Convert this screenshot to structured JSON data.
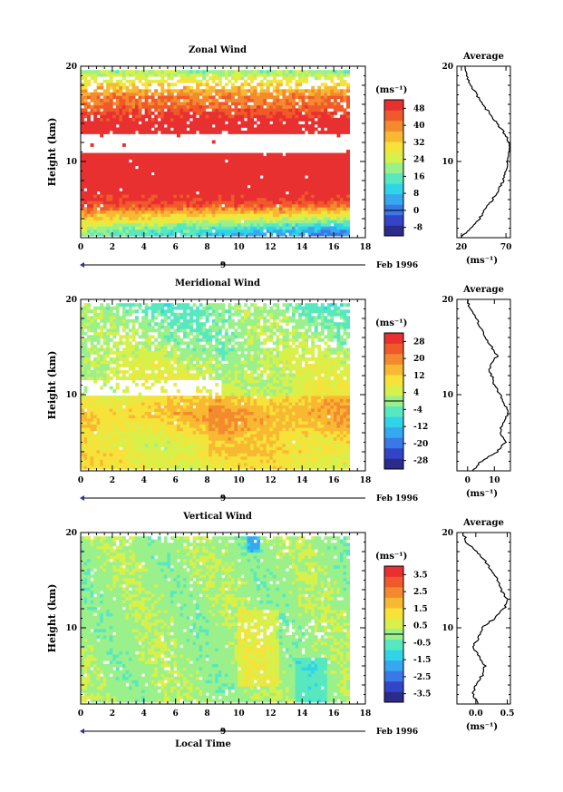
{
  "chart_data": [
    {
      "type": "heatmap",
      "title": "Zonal Wind",
      "ylabel": "Height (km)",
      "xlim": [
        0,
        18
      ],
      "ylim": [
        2,
        20
      ],
      "xticks": [
        "0",
        "2",
        "4",
        "6",
        "8",
        "10",
        "12",
        "14",
        "16",
        "18"
      ],
      "yticks": [
        "10",
        "20"
      ],
      "date_marker": "9",
      "date_label": "Feb 1996",
      "colorbar": {
        "unit": "(ms⁻¹)",
        "ticks": [
          "48",
          "40",
          "32",
          "24",
          "16",
          "8",
          "0",
          "-8"
        ],
        "range": [
          -12,
          52
        ]
      },
      "avg_title": "Average",
      "avg_unit": "(ms⁻¹)",
      "avg_xticks": [
        "20",
        "70"
      ],
      "avg_xlim": [
        15,
        75
      ],
      "avg_profile": {
        "height": [
          2,
          3,
          4,
          5,
          6,
          7,
          8,
          9,
          10,
          11,
          12,
          13,
          14,
          15,
          16,
          17,
          18,
          19,
          20
        ],
        "value": [
          20,
          30,
          40,
          47,
          55,
          62,
          67,
          70,
          72,
          74,
          73,
          68,
          60,
          52,
          44,
          37,
          31,
          26,
          24
        ]
      }
    },
    {
      "type": "heatmap",
      "title": "Meridional Wind",
      "ylabel": "Height (km)",
      "xlim": [
        0,
        18
      ],
      "ylim": [
        2,
        20
      ],
      "xticks": [
        "0",
        "2",
        "4",
        "6",
        "8",
        "10",
        "12",
        "14",
        "16",
        "18"
      ],
      "yticks": [
        "10",
        "20"
      ],
      "date_marker": "9",
      "date_label": "Feb 1996",
      "colorbar": {
        "unit": "(ms⁻¹)",
        "ticks": [
          "28",
          "20",
          "12",
          "4",
          "-4",
          "-12",
          "-20",
          "-28"
        ],
        "range": [
          -32,
          32
        ]
      },
      "avg_title": "Average",
      "avg_unit": "(ms⁻¹)",
      "avg_xticks": [
        "0",
        "10"
      ],
      "avg_xlim": [
        -4,
        16
      ],
      "avg_profile": {
        "height": [
          2,
          3,
          4,
          5,
          6,
          7,
          8,
          9,
          10,
          11,
          12,
          13,
          14,
          15,
          16,
          17,
          18,
          19,
          20
        ],
        "value": [
          2,
          5,
          11,
          14,
          12,
          13,
          15,
          14,
          12,
          10,
          9,
          8,
          11,
          9,
          7,
          5,
          3,
          1,
          0
        ]
      }
    },
    {
      "type": "heatmap",
      "title": "Vertical Wind",
      "ylabel": "Height (km)",
      "xlabel": "Local Time",
      "xlim": [
        0,
        18
      ],
      "ylim": [
        2,
        20
      ],
      "xticks": [
        "0",
        "2",
        "4",
        "6",
        "8",
        "10",
        "12",
        "14",
        "16",
        "18"
      ],
      "yticks": [
        "10",
        "20"
      ],
      "date_marker": "9",
      "date_label": "Feb 1996",
      "colorbar": {
        "unit": "(ms⁻¹)",
        "ticks": [
          "3.5",
          "2.5",
          "1.5",
          "0.5",
          "-0.5",
          "-1.5",
          "-2.5",
          "-3.5"
        ],
        "range": [
          -4,
          4
        ]
      },
      "avg_title": "Average",
      "avg_unit": "(ms⁻¹)",
      "avg_xticks": [
        "0.0",
        "0.5"
      ],
      "avg_xlim": [
        -0.3,
        0.55
      ],
      "avg_profile": {
        "height": [
          2,
          3,
          4,
          5,
          6,
          7,
          8,
          9,
          10,
          11,
          12,
          13,
          14,
          15,
          16,
          17,
          18,
          19,
          20
        ],
        "value": [
          0.05,
          -0.05,
          0.0,
          0.1,
          0.15,
          0.05,
          -0.05,
          0.05,
          0.1,
          0.3,
          0.45,
          0.5,
          0.4,
          0.35,
          0.25,
          0.15,
          0.0,
          -0.15,
          -0.2
        ]
      }
    }
  ],
  "colormap": [
    "#2b2b8c",
    "#3245c8",
    "#3a78e8",
    "#35a8f0",
    "#2fd4e8",
    "#58e8c0",
    "#9af08a",
    "#d8f04a",
    "#f7e23a",
    "#f8b832",
    "#f48a2e",
    "#f05a2a",
    "#e83030"
  ]
}
